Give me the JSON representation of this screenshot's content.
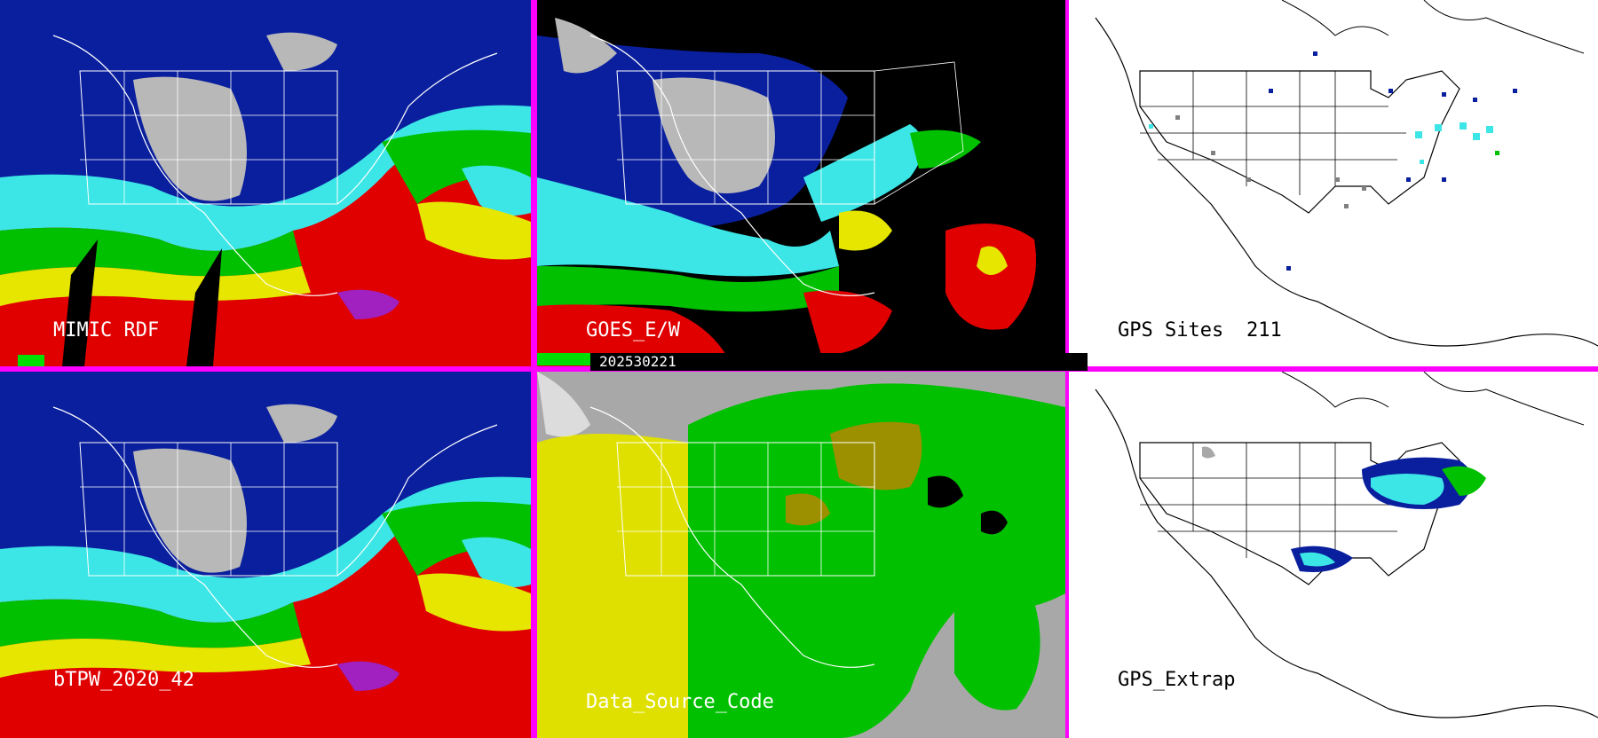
{
  "panels": [
    {
      "id": "mimic",
      "label": "MIMIC RDF"
    },
    {
      "id": "goes",
      "label": "GOES_E/W"
    },
    {
      "id": "gps-sites",
      "label": "GPS Sites",
      "count": "211"
    },
    {
      "id": "btpw",
      "label": "bTPW_2020_42"
    },
    {
      "id": "data-source",
      "label": "Data_Source_Code"
    },
    {
      "id": "gps-extrap",
      "label": "GPS_Extrap"
    }
  ],
  "timestamp": "202530221",
  "colors": {
    "separator": "#ff00ff",
    "very_dry": "#b8b8b8",
    "dry": "#0a1f9e",
    "moist": "#3ce6e6",
    "moister": "#00c000",
    "wet": "#e6e600",
    "very_wet": "#e00000",
    "extreme": "#a020c0",
    "source_yellow": "#e0e000",
    "source_green": "#00c000",
    "source_olive": "#9c9000",
    "source_gray": "#a8a8a8"
  }
}
